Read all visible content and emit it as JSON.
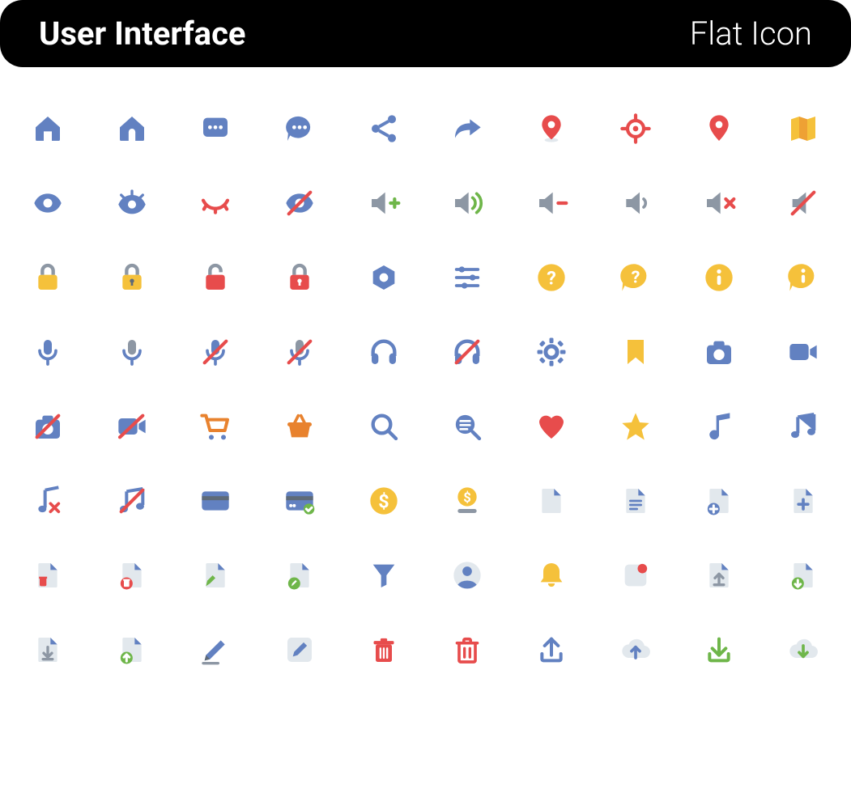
{
  "header": {
    "title_left": "User Interface",
    "title_right": "Flat Icon"
  },
  "palette": {
    "blue": "#6281c1",
    "red": "#e74c4c",
    "yellow": "#f5c13b",
    "orange": "#e8822e",
    "green": "#6fb64a",
    "gray": "#8d97a4",
    "light_gray": "#e2e8ed",
    "dark_gray": "#5e6a78",
    "white": "#ffffff",
    "header_bg": "#000000"
  },
  "grid": {
    "cols": 10,
    "rows": 8,
    "icons": [
      [
        "home",
        "home-outline",
        "message-square",
        "message-round",
        "share",
        "forward",
        "map-pin",
        "crosshair",
        "map-pin-outline",
        "map"
      ],
      [
        "eye",
        "eye-lashes",
        "eye-closed",
        "eye-off",
        "volume-plus",
        "volume-on",
        "volume-minus",
        "volume-low",
        "volume-mute",
        "volume-off"
      ],
      [
        "lock",
        "lock-keyhole",
        "lock-open",
        "lock-red",
        "nut",
        "sliders",
        "help-circle",
        "help-chat",
        "info-circle",
        "info-chat"
      ],
      [
        "mic",
        "mic-alt",
        "mic-off",
        "mic-off-alt",
        "headphones",
        "headphones-off",
        "gear",
        "bookmark",
        "camera",
        "video"
      ],
      [
        "camera-off",
        "video-off",
        "cart",
        "basket",
        "search",
        "search-list",
        "heart",
        "star",
        "music-note",
        "music-notes"
      ],
      [
        "music-off",
        "music-notes-off",
        "credit-card",
        "credit-card-check",
        "coin",
        "coin-slot",
        "file",
        "file-text",
        "file-add-badge",
        "file-plus"
      ],
      [
        "file-trash-badge",
        "file-remove-badge",
        "file-edit-badge",
        "file-edit-round",
        "funnel",
        "user-circle",
        "bell",
        "notification-dot",
        "file-upload",
        "file-download-green"
      ],
      [
        "file-download",
        "file-up-badge",
        "pencil",
        "pencil-box",
        "trash",
        "trash-outline",
        "upload-tray",
        "cloud-up",
        "download-tray",
        "cloud-down"
      ]
    ]
  }
}
